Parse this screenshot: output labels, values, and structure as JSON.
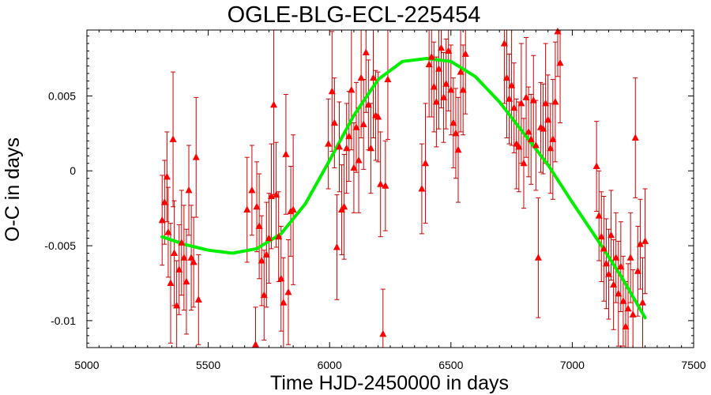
{
  "chart_data": {
    "type": "scatter",
    "title": "OGLE-BLG-ECL-225454",
    "xlabel": "Time HJD-2450000 in days",
    "ylabel": "O-C in days",
    "xlim": [
      5000,
      7500
    ],
    "ylim": [
      -0.0118,
      0.0094
    ],
    "x_ticks": [
      5000,
      5500,
      6000,
      6500,
      7000,
      7500
    ],
    "x_tick_labels": [
      "5000",
      "5500",
      "6000",
      "6500",
      "7000",
      "7500"
    ],
    "y_ticks": [
      0.005,
      0,
      -0.005,
      -0.01
    ],
    "y_tick_labels": [
      "0.005",
      "0",
      "-0.005",
      "-0.01"
    ],
    "grid": false,
    "colors": {
      "points": "#ff0000",
      "errorbars": "#cc0000",
      "fit": "#00ee00"
    },
    "series": [
      {
        "type": "scatter_errorbar",
        "points": [
          {
            "x": 5310,
            "y": -0.0033,
            "err": 0.003
          },
          {
            "x": 5320,
            "y": -0.0021,
            "err": 0.0028
          },
          {
            "x": 5330,
            "y": -0.0004,
            "err": 0.003
          },
          {
            "x": 5335,
            "y": -0.0041,
            "err": 0.003
          },
          {
            "x": 5345,
            "y": -0.0075,
            "err": 0.004
          },
          {
            "x": 5355,
            "y": 0.0021,
            "err": 0.0045
          },
          {
            "x": 5360,
            "y": -0.0055,
            "err": 0.0035
          },
          {
            "x": 5370,
            "y": -0.009,
            "err": 0.003
          },
          {
            "x": 5380,
            "y": -0.0066,
            "err": 0.003
          },
          {
            "x": 5390,
            "y": -0.0048,
            "err": 0.0035
          },
          {
            "x": 5400,
            "y": -0.0058,
            "err": 0.0035
          },
          {
            "x": 5410,
            "y": -0.0074,
            "err": 0.0035
          },
          {
            "x": 5420,
            "y": -0.0013,
            "err": 0.003
          },
          {
            "x": 5430,
            "y": -0.0058,
            "err": 0.0035
          },
          {
            "x": 5440,
            "y": -0.0061,
            "err": 0.003
          },
          {
            "x": 5450,
            "y": 0.0009,
            "err": 0.004
          },
          {
            "x": 5460,
            "y": -0.0086,
            "err": 0.003
          },
          {
            "x": 5660,
            "y": -0.0026,
            "err": 0.0035
          },
          {
            "x": 5680,
            "y": -0.0013,
            "err": 0.003
          },
          {
            "x": 5695,
            "y": -0.0116,
            "err": 0.0025
          },
          {
            "x": 5700,
            "y": -0.0024,
            "err": 0.003
          },
          {
            "x": 5710,
            "y": -0.0037,
            "err": 0.0035
          },
          {
            "x": 5720,
            "y": -0.006,
            "err": 0.003
          },
          {
            "x": 5730,
            "y": -0.0083,
            "err": 0.003
          },
          {
            "x": 5740,
            "y": -0.0056,
            "err": 0.0035
          },
          {
            "x": 5750,
            "y": -0.0045,
            "err": 0.003
          },
          {
            "x": 5760,
            "y": -0.0017,
            "err": 0.0035
          },
          {
            "x": 5770,
            "y": 0.0044,
            "err": 0.006
          },
          {
            "x": 5780,
            "y": -0.0016,
            "err": 0.0035
          },
          {
            "x": 5790,
            "y": -0.0044,
            "err": 0.003
          },
          {
            "x": 5800,
            "y": -0.0072,
            "err": 0.0035
          },
          {
            "x": 5810,
            "y": -0.0088,
            "err": 0.003
          },
          {
            "x": 5820,
            "y": 0.0011,
            "err": 0.004
          },
          {
            "x": 5830,
            "y": -0.0081,
            "err": 0.0035
          },
          {
            "x": 5840,
            "y": -0.0027,
            "err": 0.003
          },
          {
            "x": 5850,
            "y": -0.0026,
            "err": 0.005
          },
          {
            "x": 5995,
            "y": 0.0018,
            "err": 0.003
          },
          {
            "x": 6010,
            "y": 0.0053,
            "err": 0.004
          },
          {
            "x": 6020,
            "y": 0.0032,
            "err": 0.003
          },
          {
            "x": 6030,
            "y": -0.0051,
            "err": 0.0035
          },
          {
            "x": 6040,
            "y": 0.0016,
            "err": 0.003
          },
          {
            "x": 6050,
            "y": -0.0026,
            "err": 0.003
          },
          {
            "x": 6060,
            "y": -0.0024,
            "err": 0.0035
          },
          {
            "x": 6070,
            "y": 0.0015,
            "err": 0.003
          },
          {
            "x": 6080,
            "y": 0.0023,
            "err": 0.003
          },
          {
            "x": 6090,
            "y": 0.0054,
            "err": 0.004
          },
          {
            "x": 6100,
            "y": 0.0002,
            "err": 0.003
          },
          {
            "x": 6110,
            "y": 0.0029,
            "err": 0.003
          },
          {
            "x": 6120,
            "y": 0.0007,
            "err": 0.0035
          },
          {
            "x": 6130,
            "y": 0.0062,
            "err": 0.004
          },
          {
            "x": 6140,
            "y": 0.0031,
            "err": 0.003
          },
          {
            "x": 6150,
            "y": 0.0079,
            "err": 0.004
          },
          {
            "x": 6160,
            "y": 0.0044,
            "err": 0.003
          },
          {
            "x": 6170,
            "y": 0.0015,
            "err": 0.003
          },
          {
            "x": 6180,
            "y": 0.0062,
            "err": 0.004
          },
          {
            "x": 6190,
            "y": 0.0037,
            "err": 0.003
          },
          {
            "x": 6200,
            "y": 0.0036,
            "err": 0.003
          },
          {
            "x": 6210,
            "y": -0.0009,
            "err": 0.0035
          },
          {
            "x": 6220,
            "y": -0.0109,
            "err": 0.003
          },
          {
            "x": 6230,
            "y": -0.001,
            "err": 0.003
          },
          {
            "x": 6240,
            "y": 0.0061,
            "err": 0.004
          },
          {
            "x": 6380,
            "y": -0.0012,
            "err": 0.003
          },
          {
            "x": 6395,
            "y": 0.0005,
            "err": 0.004
          },
          {
            "x": 6410,
            "y": 0.0071,
            "err": 0.0035
          },
          {
            "x": 6420,
            "y": 0.0076,
            "err": 0.004
          },
          {
            "x": 6430,
            "y": 0.0056,
            "err": 0.003
          },
          {
            "x": 6440,
            "y": 0.0046,
            "err": 0.003
          },
          {
            "x": 6450,
            "y": 0.0068,
            "err": 0.004
          },
          {
            "x": 6460,
            "y": 0.0082,
            "err": 0.004
          },
          {
            "x": 6470,
            "y": 0.0049,
            "err": 0.003
          },
          {
            "x": 6480,
            "y": 0.0058,
            "err": 0.003
          },
          {
            "x": 6490,
            "y": 0.008,
            "err": 0.004
          },
          {
            "x": 6500,
            "y": 0.0054,
            "err": 0.003
          },
          {
            "x": 6510,
            "y": 0.0032,
            "err": 0.003
          },
          {
            "x": 6520,
            "y": 0.0025,
            "err": 0.003
          },
          {
            "x": 6530,
            "y": 0.0014,
            "err": 0.0035
          },
          {
            "x": 6540,
            "y": 0.0066,
            "err": 0.004
          },
          {
            "x": 6550,
            "y": 0.0054,
            "err": 0.003
          },
          {
            "x": 6560,
            "y": 0.0078,
            "err": 0.004
          },
          {
            "x": 6720,
            "y": 0.0085,
            "err": 0.004
          },
          {
            "x": 6730,
            "y": 0.0062,
            "err": 0.004
          },
          {
            "x": 6740,
            "y": 0.0048,
            "err": 0.003
          },
          {
            "x": 6750,
            "y": 0.0057,
            "err": 0.004
          },
          {
            "x": 6760,
            "y": 0.0042,
            "err": 0.003
          },
          {
            "x": 6770,
            "y": 0.0018,
            "err": 0.003
          },
          {
            "x": 6780,
            "y": 0.0016,
            "err": 0.003
          },
          {
            "x": 6790,
            "y": 0.0045,
            "err": 0.004
          },
          {
            "x": 6800,
            "y": 0.0005,
            "err": 0.003
          },
          {
            "x": 6810,
            "y": 0.0049,
            "err": 0.004
          },
          {
            "x": 6820,
            "y": 0.0026,
            "err": 0.003
          },
          {
            "x": 6830,
            "y": 0.0021,
            "err": 0.003
          },
          {
            "x": 6840,
            "y": 0.0047,
            "err": 0.003
          },
          {
            "x": 6850,
            "y": 0.0017,
            "err": 0.003
          },
          {
            "x": 6860,
            "y": -0.0058,
            "err": 0.004
          },
          {
            "x": 6870,
            "y": 0.0029,
            "err": 0.003
          },
          {
            "x": 6880,
            "y": 0.0028,
            "err": 0.003
          },
          {
            "x": 6890,
            "y": 0.0045,
            "err": 0.004
          },
          {
            "x": 6900,
            "y": 0.0034,
            "err": 0.003
          },
          {
            "x": 6910,
            "y": 0.0015,
            "err": 0.003
          },
          {
            "x": 6920,
            "y": 0.0021,
            "err": 0.004
          },
          {
            "x": 6930,
            "y": 0.0046,
            "err": 0.004
          },
          {
            "x": 6940,
            "y": 0.0093,
            "err": 0.003
          },
          {
            "x": 6950,
            "y": 0.0072,
            "err": 0.004
          },
          {
            "x": 7100,
            "y": 0.0003,
            "err": 0.003
          },
          {
            "x": 7110,
            "y": -0.003,
            "err": 0.003
          },
          {
            "x": 7120,
            "y": -0.0044,
            "err": 0.003
          },
          {
            "x": 7130,
            "y": -0.0052,
            "err": 0.0035
          },
          {
            "x": 7140,
            "y": -0.0062,
            "err": 0.003
          },
          {
            "x": 7150,
            "y": -0.0069,
            "err": 0.003
          },
          {
            "x": 7160,
            "y": -0.0043,
            "err": 0.003
          },
          {
            "x": 7170,
            "y": -0.0076,
            "err": 0.003
          },
          {
            "x": 7180,
            "y": -0.0058,
            "err": 0.003
          },
          {
            "x": 7190,
            "y": -0.0082,
            "err": 0.0035
          },
          {
            "x": 7200,
            "y": -0.0064,
            "err": 0.003
          },
          {
            "x": 7210,
            "y": -0.0087,
            "err": 0.003
          },
          {
            "x": 7220,
            "y": -0.0104,
            "err": 0.003
          },
          {
            "x": 7230,
            "y": -0.0092,
            "err": 0.003
          },
          {
            "x": 7240,
            "y": -0.0058,
            "err": 0.003
          },
          {
            "x": 7250,
            "y": -0.0096,
            "err": 0.003
          },
          {
            "x": 7260,
            "y": 0.0022,
            "err": 0.004
          },
          {
            "x": 7270,
            "y": -0.0067,
            "err": 0.003
          },
          {
            "x": 7280,
            "y": -0.0049,
            "err": 0.003
          },
          {
            "x": 7300,
            "y": -0.0047,
            "err": 0.0035
          },
          {
            "x": 7290,
            "y": -0.0088,
            "err": 0.003
          }
        ]
      },
      {
        "type": "line",
        "points": [
          {
            "x": 5310,
            "y": -0.0044
          },
          {
            "x": 5400,
            "y": -0.0049
          },
          {
            "x": 5500,
            "y": -0.0053
          },
          {
            "x": 5600,
            "y": -0.0055
          },
          {
            "x": 5700,
            "y": -0.0052
          },
          {
            "x": 5800,
            "y": -0.0042
          },
          {
            "x": 5900,
            "y": -0.0022
          },
          {
            "x": 6000,
            "y": 0.0007
          },
          {
            "x": 6100,
            "y": 0.0037
          },
          {
            "x": 6200,
            "y": 0.0061
          },
          {
            "x": 6300,
            "y": 0.0073
          },
          {
            "x": 6400,
            "y": 0.0075
          },
          {
            "x": 6500,
            "y": 0.0073
          },
          {
            "x": 6600,
            "y": 0.0063
          },
          {
            "x": 6700,
            "y": 0.0046
          },
          {
            "x": 6800,
            "y": 0.0025
          },
          {
            "x": 6900,
            "y": 0.0004
          },
          {
            "x": 7000,
            "y": -0.0021
          },
          {
            "x": 7100,
            "y": -0.0045
          },
          {
            "x": 7200,
            "y": -0.007
          },
          {
            "x": 7300,
            "y": -0.0098
          }
        ]
      }
    ]
  }
}
